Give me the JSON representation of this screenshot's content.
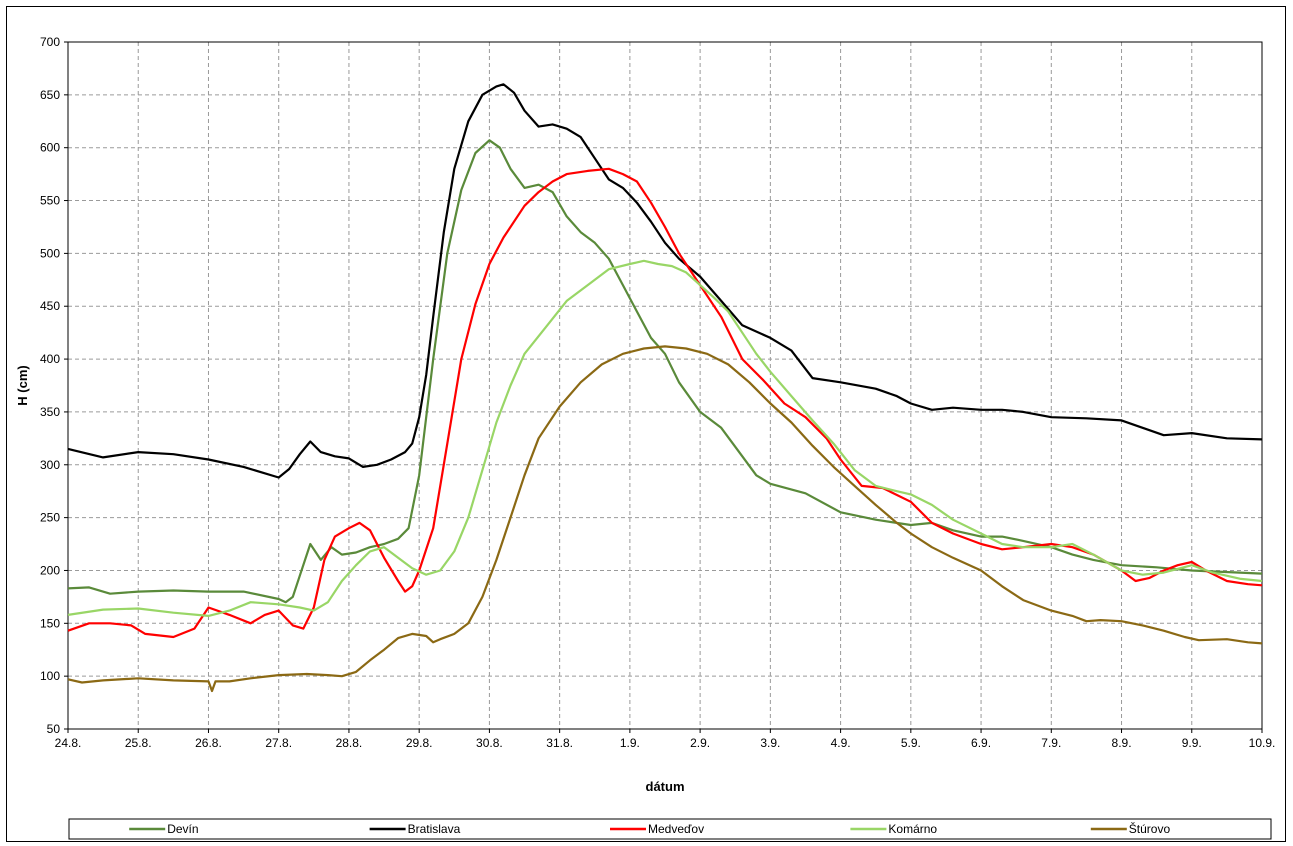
{
  "chart_data": {
    "type": "line",
    "title": "",
    "xlabel": "dátum",
    "ylabel": "H (cm)",
    "ylim": [
      50,
      700
    ],
    "yticks": [
      50,
      100,
      150,
      200,
      250,
      300,
      350,
      400,
      450,
      500,
      550,
      600,
      650,
      700
    ],
    "xlim": [
      0,
      17
    ],
    "x_tick_labels": [
      "24.8.",
      "25.8.",
      "26.8.",
      "27.8.",
      "28.8.",
      "29.8.",
      "30.8.",
      "31.8.",
      "1.9.",
      "2.9.",
      "3.9.",
      "4.9.",
      "5.9.",
      "6.9.",
      "7.9.",
      "8.9.",
      "9.9.",
      "10.9."
    ],
    "grid": true,
    "legend_position": "bottom",
    "series": [
      {
        "name": "Devín",
        "color": "#5a8a3a",
        "points": [
          [
            0,
            183
          ],
          [
            0.3,
            184
          ],
          [
            0.6,
            178
          ],
          [
            1,
            180
          ],
          [
            1.5,
            181
          ],
          [
            2,
            180
          ],
          [
            2.5,
            180
          ],
          [
            3,
            173
          ],
          [
            3.1,
            170
          ],
          [
            3.2,
            175
          ],
          [
            3.3,
            195
          ],
          [
            3.45,
            225
          ],
          [
            3.6,
            210
          ],
          [
            3.75,
            222
          ],
          [
            3.9,
            215
          ],
          [
            4.1,
            217
          ],
          [
            4.3,
            222
          ],
          [
            4.5,
            225
          ],
          [
            4.7,
            230
          ],
          [
            4.85,
            240
          ],
          [
            5,
            290
          ],
          [
            5.2,
            400
          ],
          [
            5.4,
            500
          ],
          [
            5.6,
            560
          ],
          [
            5.8,
            595
          ],
          [
            6,
            607
          ],
          [
            6.15,
            600
          ],
          [
            6.3,
            580
          ],
          [
            6.5,
            562
          ],
          [
            6.7,
            565
          ],
          [
            6.9,
            558
          ],
          [
            7.1,
            535
          ],
          [
            7.3,
            520
          ],
          [
            7.5,
            510
          ],
          [
            7.7,
            495
          ],
          [
            7.9,
            470
          ],
          [
            8.1,
            445
          ],
          [
            8.3,
            420
          ],
          [
            8.5,
            405
          ],
          [
            8.7,
            378
          ],
          [
            9,
            350
          ],
          [
            9.3,
            335
          ],
          [
            9.6,
            308
          ],
          [
            9.8,
            290
          ],
          [
            10,
            282
          ],
          [
            10.5,
            273
          ],
          [
            11,
            255
          ],
          [
            11.5,
            248
          ],
          [
            12,
            243
          ],
          [
            12.3,
            245
          ],
          [
            12.6,
            238
          ],
          [
            13,
            232
          ],
          [
            13.3,
            232
          ],
          [
            13.6,
            228
          ],
          [
            14,
            222
          ],
          [
            14.3,
            215
          ],
          [
            14.6,
            210
          ],
          [
            15,
            205
          ],
          [
            15.5,
            203
          ],
          [
            16,
            200
          ],
          [
            17,
            197
          ]
        ]
      },
      {
        "name": "Bratislava",
        "color": "#000000",
        "points": [
          [
            0,
            315
          ],
          [
            0.5,
            307
          ],
          [
            1,
            312
          ],
          [
            1.5,
            310
          ],
          [
            2,
            305
          ],
          [
            2.5,
            298
          ],
          [
            3,
            288
          ],
          [
            3.15,
            296
          ],
          [
            3.3,
            310
          ],
          [
            3.45,
            322
          ],
          [
            3.6,
            312
          ],
          [
            3.8,
            308
          ],
          [
            4,
            306
          ],
          [
            4.2,
            298
          ],
          [
            4.4,
            300
          ],
          [
            4.6,
            305
          ],
          [
            4.8,
            312
          ],
          [
            4.9,
            320
          ],
          [
            5,
            345
          ],
          [
            5.1,
            385
          ],
          [
            5.2,
            440
          ],
          [
            5.35,
            520
          ],
          [
            5.5,
            580
          ],
          [
            5.7,
            625
          ],
          [
            5.9,
            650
          ],
          [
            6.1,
            658
          ],
          [
            6.2,
            660
          ],
          [
            6.35,
            652
          ],
          [
            6.5,
            635
          ],
          [
            6.7,
            620
          ],
          [
            6.9,
            622
          ],
          [
            7.1,
            618
          ],
          [
            7.3,
            610
          ],
          [
            7.5,
            590
          ],
          [
            7.7,
            570
          ],
          [
            7.9,
            562
          ],
          [
            8.1,
            548
          ],
          [
            8.3,
            530
          ],
          [
            8.5,
            510
          ],
          [
            8.7,
            495
          ],
          [
            9,
            478
          ],
          [
            9.3,
            455
          ],
          [
            9.6,
            432
          ],
          [
            10,
            420
          ],
          [
            10.3,
            408
          ],
          [
            10.6,
            382
          ],
          [
            11,
            378
          ],
          [
            11.5,
            372
          ],
          [
            11.8,
            365
          ],
          [
            12,
            358
          ],
          [
            12.3,
            352
          ],
          [
            12.6,
            354
          ],
          [
            13,
            352
          ],
          [
            13.3,
            352
          ],
          [
            13.6,
            350
          ],
          [
            14,
            345
          ],
          [
            14.5,
            344
          ],
          [
            15,
            342
          ],
          [
            15.3,
            335
          ],
          [
            15.6,
            328
          ],
          [
            16,
            330
          ],
          [
            16.5,
            325
          ],
          [
            17,
            324
          ]
        ]
      },
      {
        "name": "Medveďov",
        "color": "#ff0000",
        "points": [
          [
            0,
            143
          ],
          [
            0.3,
            150
          ],
          [
            0.6,
            150
          ],
          [
            0.9,
            148
          ],
          [
            1.1,
            140
          ],
          [
            1.5,
            137
          ],
          [
            1.8,
            145
          ],
          [
            2,
            165
          ],
          [
            2.3,
            158
          ],
          [
            2.6,
            150
          ],
          [
            2.8,
            158
          ],
          [
            3,
            162
          ],
          [
            3.2,
            148
          ],
          [
            3.35,
            145
          ],
          [
            3.5,
            165
          ],
          [
            3.65,
            210
          ],
          [
            3.8,
            232
          ],
          [
            4,
            240
          ],
          [
            4.15,
            245
          ],
          [
            4.3,
            238
          ],
          [
            4.5,
            212
          ],
          [
            4.7,
            190
          ],
          [
            4.8,
            180
          ],
          [
            4.9,
            185
          ],
          [
            5,
            200
          ],
          [
            5.2,
            240
          ],
          [
            5.4,
            320
          ],
          [
            5.6,
            400
          ],
          [
            5.8,
            452
          ],
          [
            6,
            490
          ],
          [
            6.2,
            515
          ],
          [
            6.5,
            545
          ],
          [
            6.7,
            558
          ],
          [
            6.9,
            568
          ],
          [
            7.1,
            575
          ],
          [
            7.4,
            578
          ],
          [
            7.7,
            580
          ],
          [
            7.9,
            575
          ],
          [
            8.1,
            568
          ],
          [
            8.3,
            548
          ],
          [
            8.5,
            525
          ],
          [
            8.7,
            500
          ],
          [
            9,
            470
          ],
          [
            9.3,
            440
          ],
          [
            9.6,
            400
          ],
          [
            9.9,
            380
          ],
          [
            10.2,
            358
          ],
          [
            10.5,
            345
          ],
          [
            10.8,
            325
          ],
          [
            11,
            305
          ],
          [
            11.3,
            280
          ],
          [
            11.6,
            278
          ],
          [
            12,
            265
          ],
          [
            12.3,
            245
          ],
          [
            12.6,
            235
          ],
          [
            13,
            225
          ],
          [
            13.3,
            220
          ],
          [
            13.6,
            222
          ],
          [
            14,
            225
          ],
          [
            14.3,
            222
          ],
          [
            14.6,
            215
          ],
          [
            15,
            200
          ],
          [
            15.2,
            190
          ],
          [
            15.4,
            193
          ],
          [
            15.6,
            200
          ],
          [
            15.8,
            205
          ],
          [
            16,
            208
          ],
          [
            16.2,
            200
          ],
          [
            16.5,
            190
          ],
          [
            16.8,
            187
          ],
          [
            17,
            186
          ]
        ]
      },
      {
        "name": "Komárno",
        "color": "#99d666",
        "points": [
          [
            0,
            158
          ],
          [
            0.5,
            163
          ],
          [
            1,
            164
          ],
          [
            1.5,
            160
          ],
          [
            2,
            157
          ],
          [
            2.3,
            162
          ],
          [
            2.6,
            170
          ],
          [
            3,
            168
          ],
          [
            3.3,
            165
          ],
          [
            3.5,
            162
          ],
          [
            3.7,
            170
          ],
          [
            3.9,
            190
          ],
          [
            4.1,
            205
          ],
          [
            4.3,
            218
          ],
          [
            4.5,
            222
          ],
          [
            4.7,
            212
          ],
          [
            4.9,
            202
          ],
          [
            5.1,
            196
          ],
          [
            5.3,
            200
          ],
          [
            5.5,
            218
          ],
          [
            5.7,
            250
          ],
          [
            5.9,
            295
          ],
          [
            6.1,
            340
          ],
          [
            6.3,
            375
          ],
          [
            6.5,
            405
          ],
          [
            6.8,
            430
          ],
          [
            7.1,
            455
          ],
          [
            7.4,
            470
          ],
          [
            7.7,
            485
          ],
          [
            8,
            490
          ],
          [
            8.2,
            493
          ],
          [
            8.4,
            490
          ],
          [
            8.6,
            488
          ],
          [
            8.8,
            482
          ],
          [
            9,
            470
          ],
          [
            9.2,
            458
          ],
          [
            9.4,
            445
          ],
          [
            9.6,
            425
          ],
          [
            9.8,
            405
          ],
          [
            10,
            388
          ],
          [
            10.3,
            365
          ],
          [
            10.6,
            342
          ],
          [
            10.9,
            320
          ],
          [
            11.2,
            295
          ],
          [
            11.5,
            280
          ],
          [
            11.8,
            275
          ],
          [
            12,
            272
          ],
          [
            12.3,
            262
          ],
          [
            12.6,
            248
          ],
          [
            13,
            235
          ],
          [
            13.3,
            225
          ],
          [
            13.6,
            222
          ],
          [
            14,
            222
          ],
          [
            14.3,
            225
          ],
          [
            14.6,
            215
          ],
          [
            15,
            200
          ],
          [
            15.3,
            196
          ],
          [
            15.6,
            198
          ],
          [
            16,
            205
          ],
          [
            16.3,
            198
          ],
          [
            16.7,
            192
          ],
          [
            17,
            190
          ]
        ]
      },
      {
        "name": "Štúrovo",
        "color": "#8b6914",
        "points": [
          [
            0,
            97
          ],
          [
            0.2,
            94
          ],
          [
            0.5,
            96
          ],
          [
            1,
            98
          ],
          [
            1.5,
            96
          ],
          [
            2,
            95
          ],
          [
            2.05,
            86
          ],
          [
            2.1,
            95
          ],
          [
            2.3,
            95
          ],
          [
            2.6,
            98
          ],
          [
            3,
            101
          ],
          [
            3.4,
            102
          ],
          [
            3.7,
            101
          ],
          [
            3.9,
            100
          ],
          [
            4.1,
            104
          ],
          [
            4.3,
            115
          ],
          [
            4.5,
            125
          ],
          [
            4.7,
            136
          ],
          [
            4.9,
            140
          ],
          [
            5.1,
            138
          ],
          [
            5.2,
            132
          ],
          [
            5.3,
            135
          ],
          [
            5.5,
            140
          ],
          [
            5.7,
            150
          ],
          [
            5.9,
            175
          ],
          [
            6.1,
            210
          ],
          [
            6.3,
            250
          ],
          [
            6.5,
            290
          ],
          [
            6.7,
            325
          ],
          [
            7,
            355
          ],
          [
            7.3,
            378
          ],
          [
            7.6,
            395
          ],
          [
            7.9,
            405
          ],
          [
            8.2,
            410
          ],
          [
            8.5,
            412
          ],
          [
            8.8,
            410
          ],
          [
            9.1,
            405
          ],
          [
            9.4,
            395
          ],
          [
            9.7,
            378
          ],
          [
            10,
            358
          ],
          [
            10.3,
            340
          ],
          [
            10.6,
            318
          ],
          [
            10.9,
            298
          ],
          [
            11.2,
            280
          ],
          [
            11.5,
            262
          ],
          [
            11.8,
            245
          ],
          [
            12,
            235
          ],
          [
            12.3,
            222
          ],
          [
            12.6,
            212
          ],
          [
            13,
            200
          ],
          [
            13.3,
            185
          ],
          [
            13.6,
            172
          ],
          [
            14,
            162
          ],
          [
            14.3,
            157
          ],
          [
            14.5,
            152
          ],
          [
            14.7,
            153
          ],
          [
            15,
            152
          ],
          [
            15.3,
            148
          ],
          [
            15.6,
            143
          ],
          [
            15.9,
            137
          ],
          [
            16.1,
            134
          ],
          [
            16.5,
            135
          ],
          [
            16.8,
            132
          ],
          [
            17,
            131
          ]
        ]
      }
    ]
  }
}
